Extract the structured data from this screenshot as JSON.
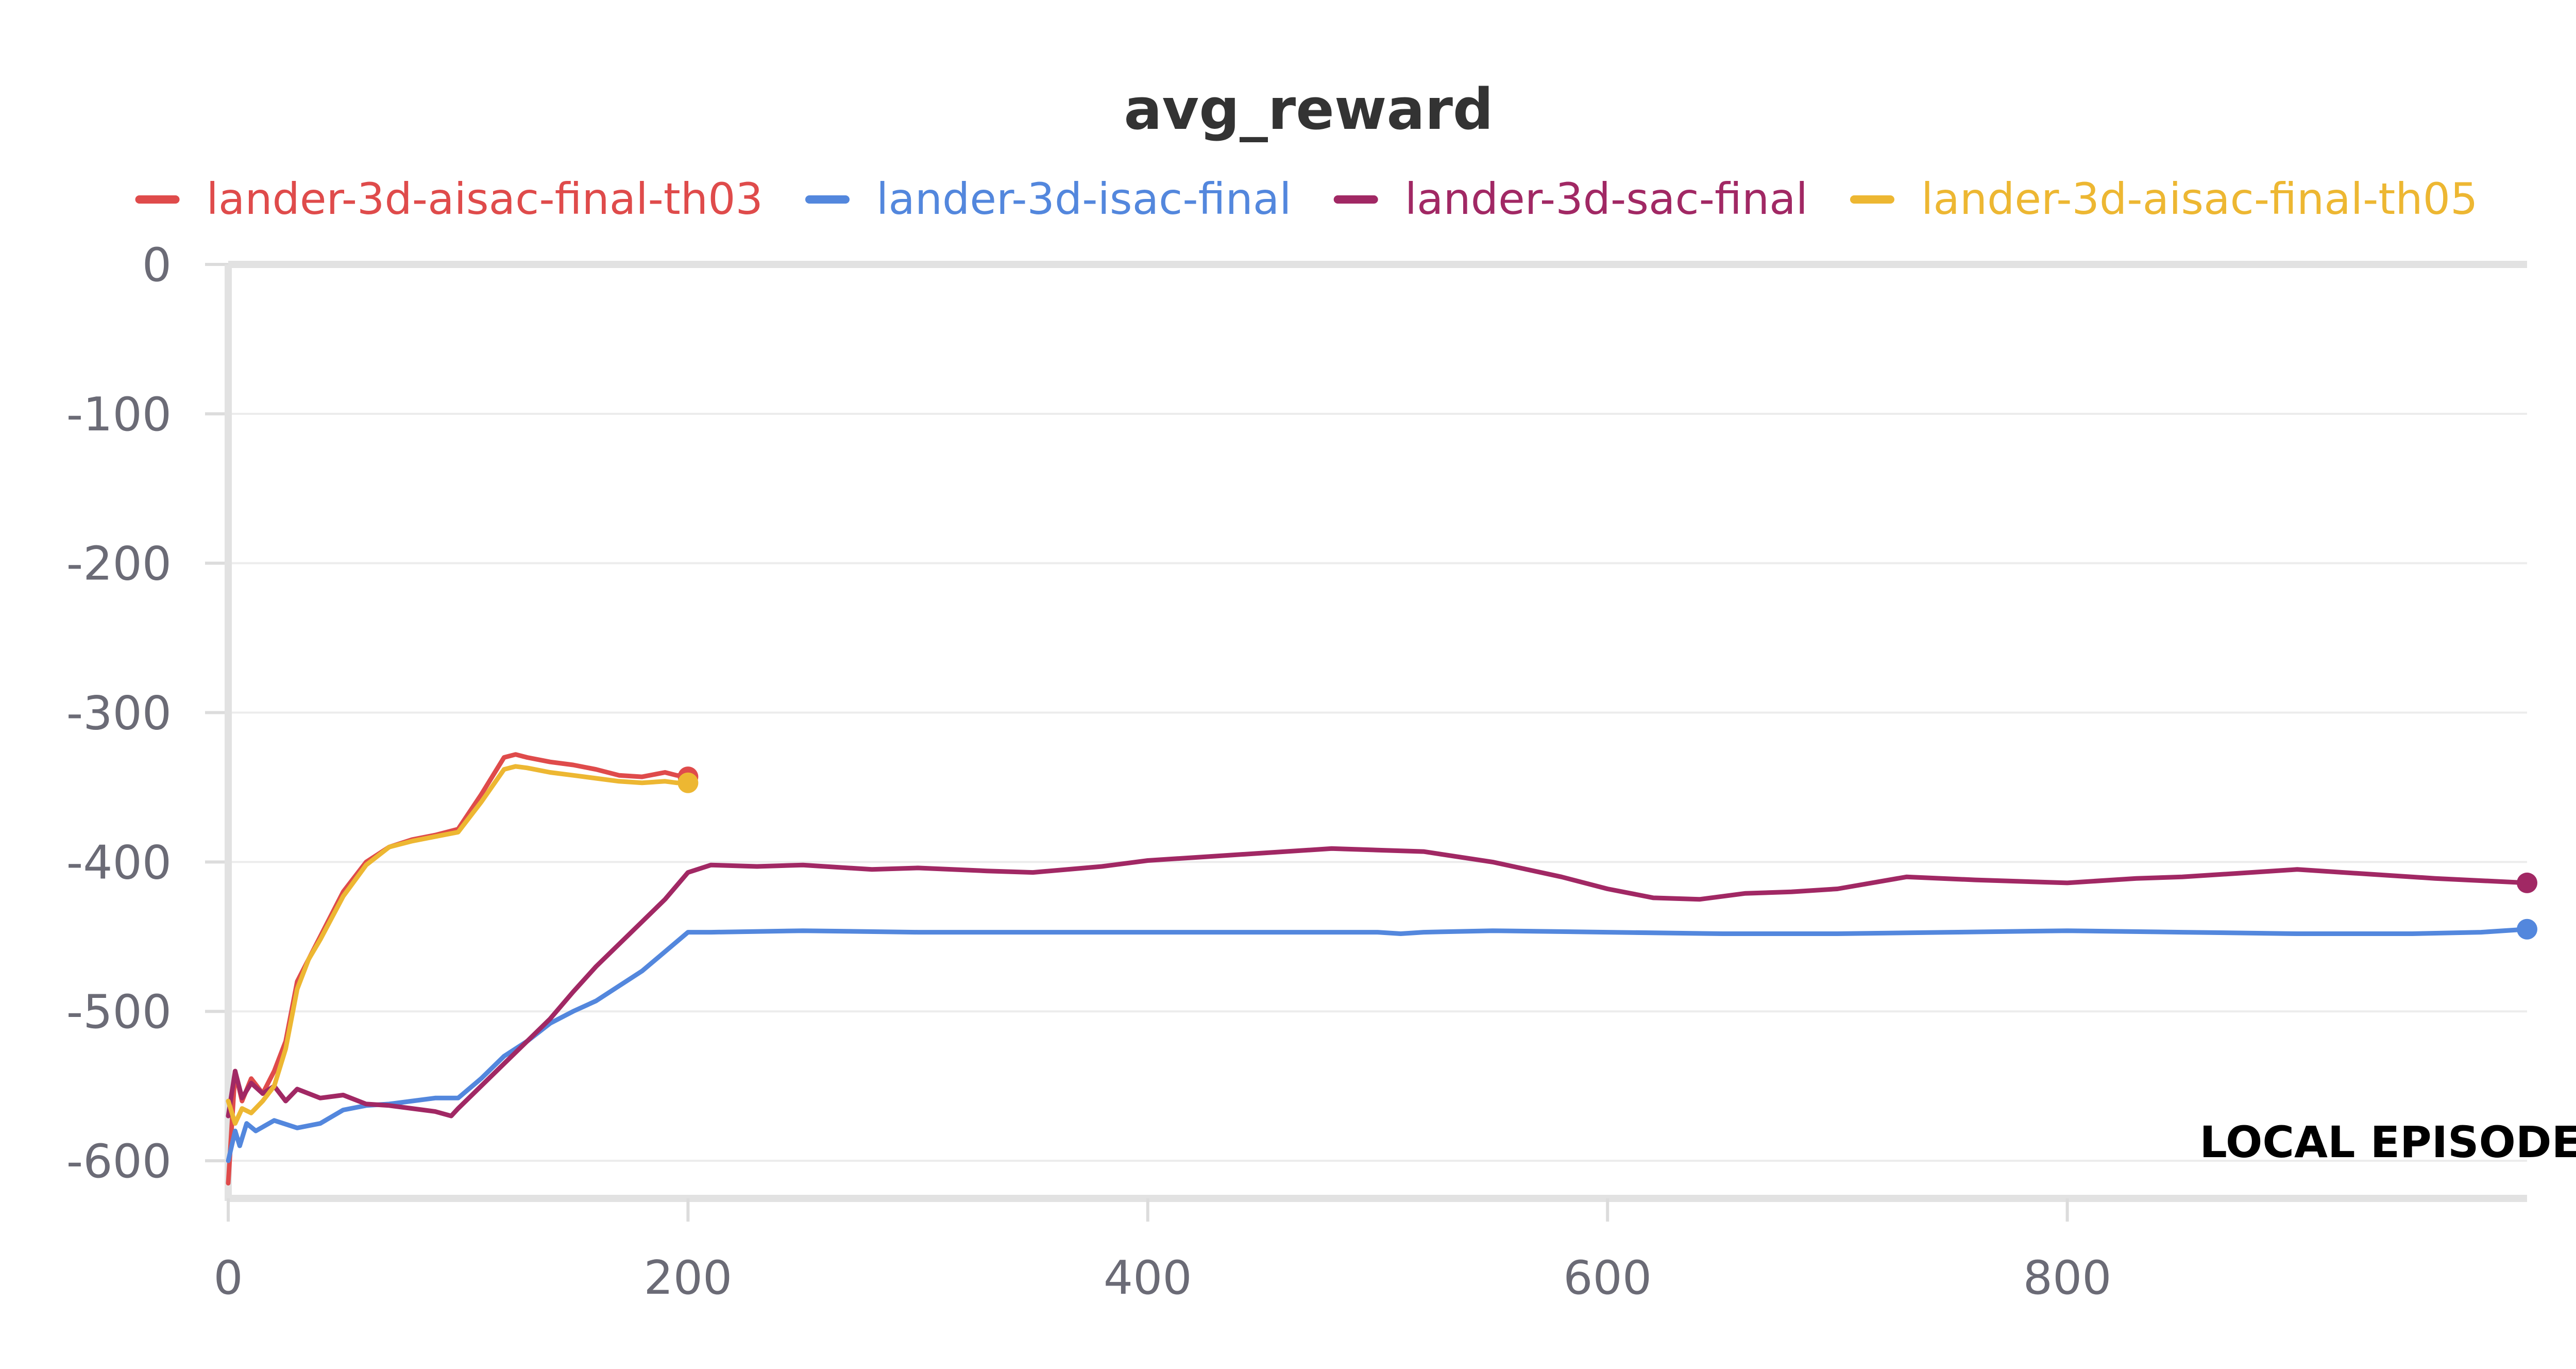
{
  "chart_data": {
    "type": "line",
    "title": "avg_reward",
    "xlabel": "LOCAL EPISODE",
    "ylabel": "",
    "xlim": [
      0,
      1000
    ],
    "ylim": [
      -620,
      0
    ],
    "x_ticks": [
      0,
      200,
      400,
      600,
      800
    ],
    "x_tick_labels": [
      "0",
      "200",
      "400",
      "600",
      "800"
    ],
    "y_ticks": [
      0,
      -100,
      -200,
      -300,
      -400,
      -500,
      -600
    ],
    "y_tick_labels": [
      "0",
      "-100",
      "-200",
      "-300",
      "-400",
      "-500",
      "-600"
    ],
    "grid": true,
    "legend_position": "top",
    "series": [
      {
        "name": "lander-3d-aisac-final-th03",
        "color": "#df4b4b",
        "x": [
          0,
          3,
          6,
          10,
          15,
          20,
          25,
          30,
          35,
          40,
          50,
          60,
          70,
          80,
          90,
          100,
          110,
          120,
          125,
          130,
          140,
          150,
          160,
          170,
          180,
          190,
          195,
          200
        ],
        "y": [
          -615,
          -540,
          -560,
          -545,
          -555,
          -540,
          -520,
          -480,
          -465,
          -450,
          -420,
          -400,
          -390,
          -385,
          -382,
          -378,
          -355,
          -330,
          -328,
          -330,
          -333,
          -335,
          -338,
          -342,
          -343,
          -340,
          -342,
          -343
        ]
      },
      {
        "name": "lander-3d-isac-final",
        "color": "#5387dd",
        "x": [
          0,
          3,
          5,
          8,
          12,
          20,
          30,
          40,
          50,
          60,
          70,
          80,
          90,
          100,
          110,
          120,
          130,
          140,
          150,
          160,
          170,
          180,
          190,
          200,
          210,
          250,
          300,
          350,
          400,
          450,
          500,
          510,
          520,
          550,
          600,
          650,
          700,
          750,
          800,
          850,
          900,
          950,
          980,
          1000
        ],
        "y": [
          -600,
          -580,
          -590,
          -575,
          -580,
          -573,
          -578,
          -575,
          -566,
          -563,
          -562,
          -560,
          -558,
          -558,
          -545,
          -530,
          -520,
          -508,
          -500,
          -493,
          -483,
          -473,
          -460,
          -447,
          -447,
          -446,
          -447,
          -447,
          -447,
          -447,
          -447,
          -448,
          -447,
          -446,
          -447,
          -448,
          -448,
          -447,
          -446,
          -447,
          -448,
          -448,
          -447,
          -445
        ]
      },
      {
        "name": "lander-3d-sac-final",
        "color": "#a12864",
        "x": [
          0,
          3,
          6,
          10,
          15,
          20,
          25,
          30,
          40,
          50,
          60,
          70,
          80,
          90,
          97,
          100,
          110,
          120,
          130,
          140,
          150,
          160,
          170,
          180,
          190,
          200,
          210,
          230,
          250,
          280,
          300,
          330,
          350,
          380,
          400,
          420,
          450,
          480,
          500,
          520,
          550,
          580,
          600,
          620,
          640,
          660,
          680,
          700,
          730,
          760,
          800,
          830,
          850,
          880,
          900,
          930,
          960,
          1000
        ],
        "y": [
          -570,
          -540,
          -558,
          -548,
          -555,
          -550,
          -560,
          -552,
          -558,
          -556,
          -562,
          -563,
          -565,
          -567,
          -570,
          -565,
          -550,
          -535,
          -520,
          -505,
          -487,
          -470,
          -455,
          -440,
          -425,
          -407,
          -402,
          -403,
          -402,
          -405,
          -404,
          -406,
          -407,
          -403,
          -399,
          -397,
          -394,
          -391,
          -392,
          -393,
          -400,
          -410,
          -418,
          -424,
          -425,
          -421,
          -420,
          -418,
          -410,
          -412,
          -414,
          -411,
          -410,
          -407,
          -405,
          -408,
          -411,
          -414
        ]
      },
      {
        "name": "lander-3d-aisac-final-th05",
        "color": "#edb732",
        "x": [
          0,
          3,
          6,
          10,
          15,
          20,
          25,
          30,
          35,
          40,
          50,
          60,
          70,
          80,
          90,
          100,
          110,
          120,
          125,
          130,
          140,
          150,
          160,
          170,
          180,
          190,
          195,
          200
        ],
        "y": [
          -560,
          -575,
          -565,
          -568,
          -560,
          -550,
          -525,
          -485,
          -465,
          -452,
          -423,
          -402,
          -390,
          -386,
          -383,
          -380,
          -360,
          -338,
          -336,
          -337,
          -340,
          -342,
          -344,
          -346,
          -347,
          -346,
          -347,
          -347
        ]
      }
    ]
  }
}
